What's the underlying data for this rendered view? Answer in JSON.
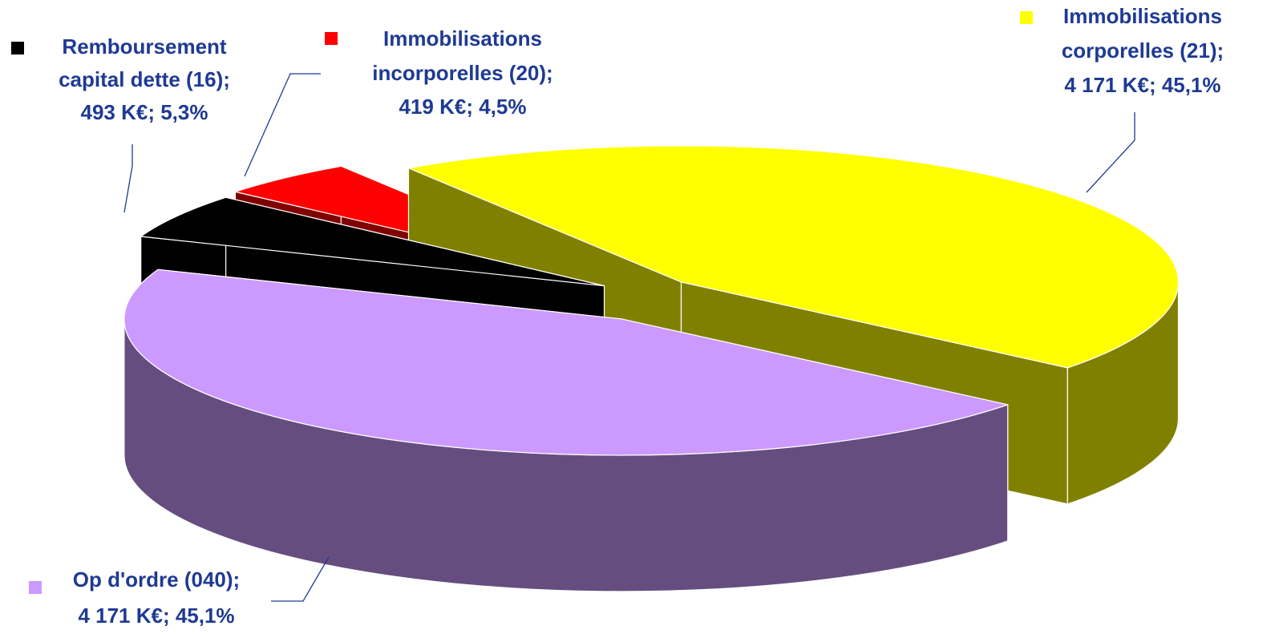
{
  "chart_data": {
    "type": "pie3d",
    "categories": [
      "Op d'ordre (040);",
      "Remboursement capital dette (16);",
      "Immobilisations incorporelles (20);",
      "Immobilisations corporelles (21);"
    ],
    "values": [
      4171,
      493,
      419,
      4171
    ],
    "value_labels": [
      "4 171 K€; 45,1%",
      "493 K€; 5,3%",
      "419 K€; 4,5%",
      "4 171 K€; 45,1%"
    ],
    "colors": [
      "#cc99ff",
      "#000000",
      "#ff0000",
      "#ffff00"
    ]
  }
}
